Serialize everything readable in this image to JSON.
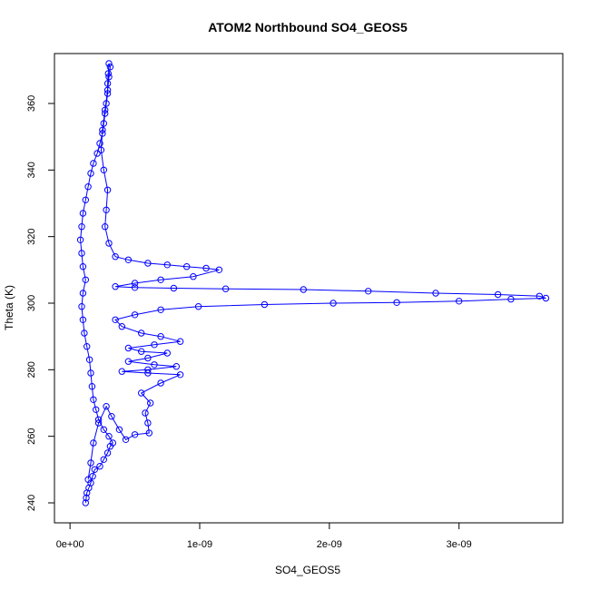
{
  "chart_data": {
    "type": "scatter",
    "title": "ATOM2 Northbound SO4_GEOS5",
    "xlabel": "SO4_GEOS5",
    "ylabel": "Theta (K)",
    "xlim": [
      -1.2e-10,
      3.8e-09
    ],
    "ylim": [
      234,
      375
    ],
    "x_ticks": [
      0,
      1e-09,
      2e-09,
      3e-09
    ],
    "x_tick_labels": [
      "0e+00",
      "1e-09",
      "2e-09",
      "3e-09"
    ],
    "y_ticks": [
      240,
      260,
      280,
      300,
      320,
      340,
      360
    ],
    "y_tick_labels": [
      "240",
      "260",
      "280",
      "300",
      "320",
      "340",
      "360"
    ],
    "grid": false,
    "legend": "none",
    "marker": "open-circle",
    "connected": true,
    "colors": {
      "series": "#0000ff",
      "axes": "#000000"
    },
    "series": [
      {
        "values_note": "",
        "points": [
          [
            1.2e-10,
            240.0
          ],
          [
            1.25e-10,
            241.5
          ],
          [
            1.3e-10,
            243.0
          ],
          [
            1.45e-10,
            244.5
          ],
          [
            1.6e-10,
            246.0
          ],
          [
            1.75e-10,
            248.0
          ],
          [
            1.9e-10,
            250.0
          ],
          [
            2.3e-10,
            251.0
          ],
          [
            2.6e-10,
            253.0
          ],
          [
            2.9e-10,
            255.0
          ],
          [
            3.1e-10,
            257.0
          ],
          [
            3.3e-10,
            258.0
          ],
          [
            3e-10,
            260.0
          ],
          [
            2.6e-10,
            262.0
          ],
          [
            2.2e-10,
            265.0
          ],
          [
            2e-10,
            268.0
          ],
          [
            1.8e-10,
            271.0
          ],
          [
            1.7e-10,
            275.0
          ],
          [
            1.6e-10,
            279.0
          ],
          [
            1.5e-10,
            283.0
          ],
          [
            1.3e-10,
            287.0
          ],
          [
            1.1e-10,
            291.0
          ],
          [
            1e-10,
            295.0
          ],
          [
            9e-11,
            299.0
          ],
          [
            1e-10,
            303.0
          ],
          [
            1.2e-10,
            307.0
          ],
          [
            1e-10,
            311.0
          ],
          [
            9e-11,
            315.0
          ],
          [
            8e-11,
            319.0
          ],
          [
            9e-11,
            323.0
          ],
          [
            1e-10,
            327.0
          ],
          [
            1.2e-10,
            331.0
          ],
          [
            1.4e-10,
            335.0
          ],
          [
            1.6e-10,
            339.0
          ],
          [
            1.8e-10,
            342.0
          ],
          [
            2.1e-10,
            345.0
          ],
          [
            2.3e-10,
            348.0
          ],
          [
            2.5e-10,
            351.0
          ],
          [
            2.6e-10,
            354.0
          ],
          [
            2.7e-10,
            357.0
          ],
          [
            2.8e-10,
            360.0
          ],
          [
            2.9e-10,
            363.0
          ],
          [
            2.9e-10,
            366.0
          ],
          [
            2.95e-10,
            369.0
          ],
          [
            3e-10,
            372.0
          ],
          [
            3.1e-10,
            371.0
          ],
          [
            3e-10,
            368.0
          ],
          [
            2.9e-10,
            364.0
          ],
          [
            2.7e-10,
            358.0
          ],
          [
            2.5e-10,
            352.0
          ],
          [
            2.4e-10,
            346.0
          ],
          [
            2.6e-10,
            340.0
          ],
          [
            2.9e-10,
            334.0
          ],
          [
            2.8e-10,
            328.0
          ],
          [
            2.7e-10,
            323.0
          ],
          [
            3e-10,
            318.0
          ],
          [
            3.5e-10,
            314.0
          ],
          [
            4.5e-10,
            313.0
          ],
          [
            6e-10,
            312.0
          ],
          [
            7.5e-10,
            311.5
          ],
          [
            9e-10,
            311.0
          ],
          [
            1.05e-09,
            310.5
          ],
          [
            1.15e-09,
            310.0
          ],
          [
            9.5e-10,
            308.0
          ],
          [
            7e-10,
            307.0
          ],
          [
            5e-10,
            306.0
          ],
          [
            3.5e-10,
            305.0
          ],
          [
            5e-10,
            304.7
          ],
          [
            8e-10,
            304.5
          ],
          [
            1.2e-09,
            304.3
          ],
          [
            1.8e-09,
            304.1
          ],
          [
            2.3e-09,
            303.6
          ],
          [
            2.82e-09,
            303.0
          ],
          [
            3.3e-09,
            302.6
          ],
          [
            3.62e-09,
            302.1
          ],
          [
            3.67e-09,
            301.5
          ],
          [
            3.4e-09,
            301.2
          ],
          [
            3e-09,
            300.6
          ],
          [
            2.52e-09,
            300.2
          ],
          [
            2.03e-09,
            300.0
          ],
          [
            1.5e-09,
            299.6
          ],
          [
            9.9e-10,
            299.0
          ],
          [
            7e-10,
            298.0
          ],
          [
            5e-10,
            296.5
          ],
          [
            3.5e-10,
            295.0
          ],
          [
            4e-10,
            293.0
          ],
          [
            5.5e-10,
            291.0
          ],
          [
            7e-10,
            290.0
          ],
          [
            8.5e-10,
            288.5
          ],
          [
            6.5e-10,
            287.5
          ],
          [
            4.5e-10,
            286.5
          ],
          [
            5.5e-10,
            285.5
          ],
          [
            7.5e-10,
            285.0
          ],
          [
            6e-10,
            283.5
          ],
          [
            4.5e-10,
            282.5
          ],
          [
            6.5e-10,
            281.5
          ],
          [
            8.2e-10,
            281.0
          ],
          [
            6e-10,
            280.0
          ],
          [
            4e-10,
            279.5
          ],
          [
            6e-10,
            279.0
          ],
          [
            8.5e-10,
            278.5
          ],
          [
            7e-10,
            276.0
          ],
          [
            5.5e-10,
            273.0
          ],
          [
            6.2e-10,
            270.0
          ],
          [
            5.8e-10,
            267.0
          ],
          [
            6e-10,
            264.0
          ],
          [
            6.1e-10,
            261.0
          ],
          [
            5e-10,
            260.5
          ],
          [
            4.3e-10,
            259.0
          ],
          [
            3.8e-10,
            262.0
          ],
          [
            3.2e-10,
            266.0
          ],
          [
            2.8e-10,
            269.0
          ],
          [
            2.2e-10,
            264.0
          ],
          [
            1.8e-10,
            258.0
          ],
          [
            1.6e-10,
            252.0
          ],
          [
            1.4e-10,
            247.0
          ]
        ]
      }
    ]
  }
}
